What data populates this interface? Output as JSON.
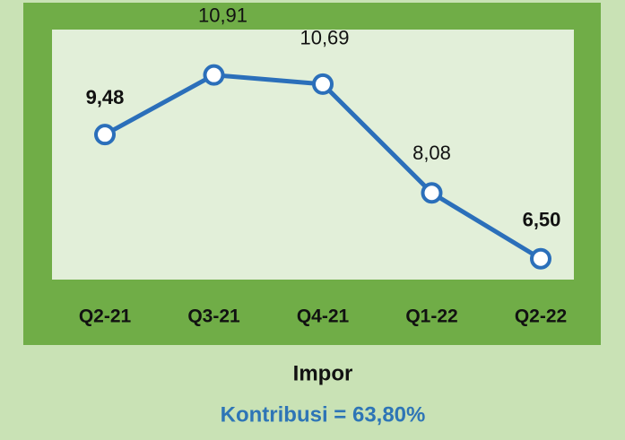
{
  "chart_data": {
    "type": "line",
    "categories": [
      "Q2-21",
      "Q3-21",
      "Q4-21",
      "Q1-22",
      "Q2-22"
    ],
    "values": [
      9.48,
      10.91,
      10.69,
      8.08,
      6.5
    ],
    "value_labels": [
      "9,48",
      "10,91",
      "10,69",
      "8,08",
      "6,50"
    ],
    "value_label_bold": [
      true,
      false,
      false,
      false,
      true
    ],
    "color": "#2b6fba",
    "ylim": [
      6,
      12
    ],
    "caption": "Impor",
    "subcaption": "Kontribusi = 63,80%"
  }
}
